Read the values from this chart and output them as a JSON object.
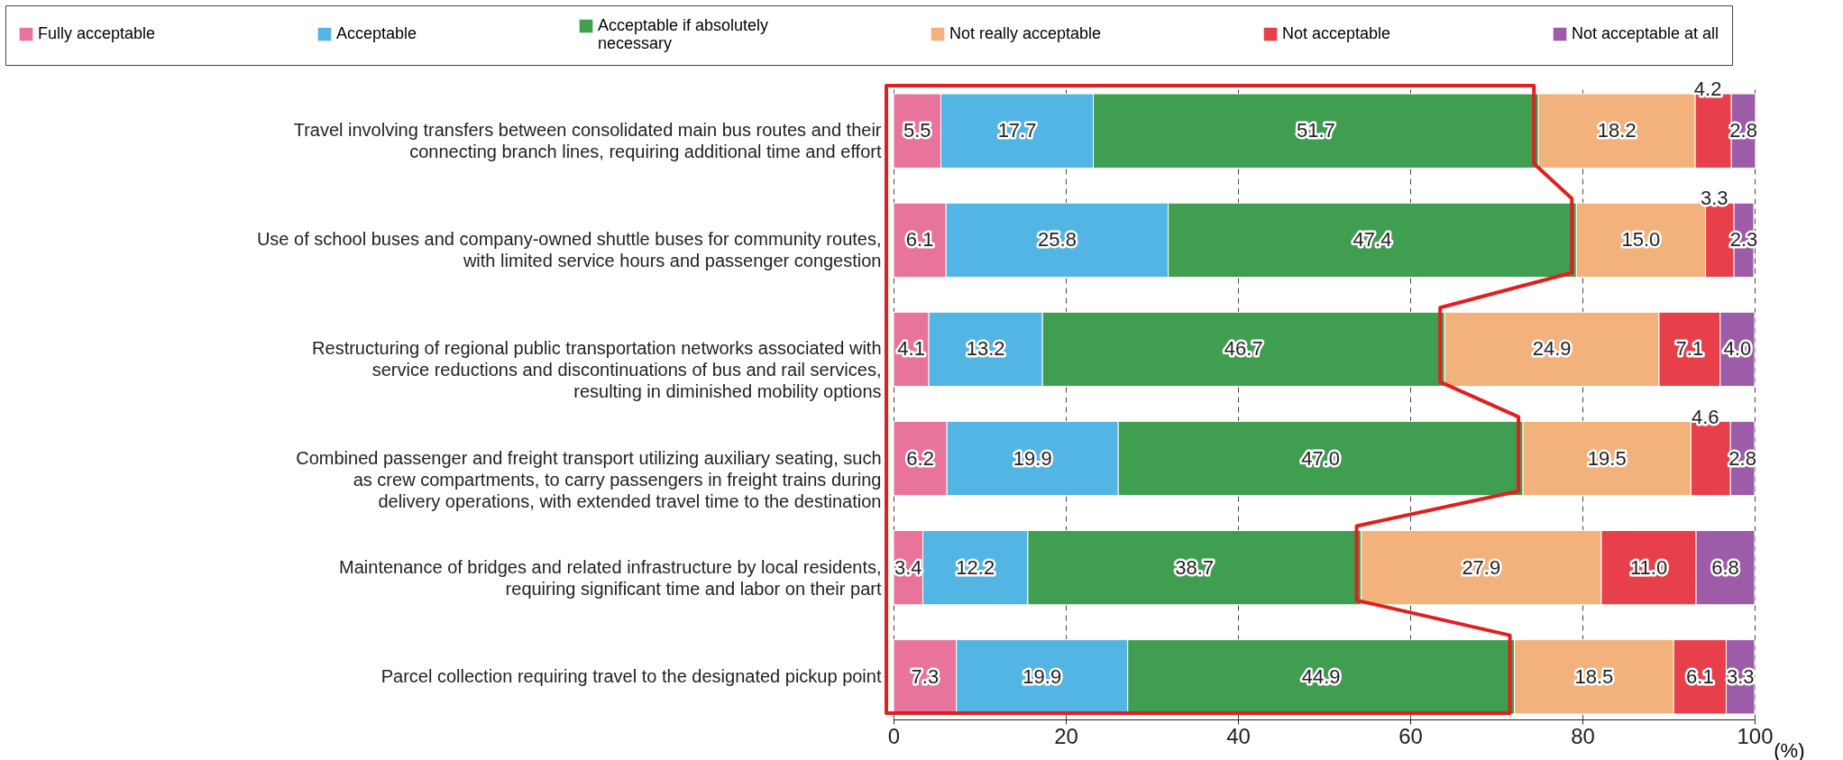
{
  "chart_data": {
    "type": "bar",
    "orientation": "horizontal",
    "stacked": true,
    "legend": "top",
    "grid": "x",
    "line_style": "dashed",
    "xlabel": "(%)",
    "categories": [
      "Travel involving transfers between consolidated main bus routes and their connecting branch lines, requiring additional time and effort",
      "Use of school buses and company-owned shuttle buses for community routes, with limited service hours and passenger congestion",
      "Restructuring of regional public transportation networks associated with service reductions and discontinuations of bus and rail services, resulting in diminished mobility options",
      "Combined passenger and freight transport utilizing auxiliary seating, such as crew compartments, to carry passengers in freight trains during delivery operations, with extended travel time to the destination",
      "Maintenance of bridges and related infrastructure by local residents, requiring significant time and labor on their part",
      "Parcel collection requiring travel to the designated pickup point"
    ],
    "series": [
      {
        "name": "Fully acceptable",
        "color": "#e8739b",
        "values": [
          5.5,
          6.1,
          4.1,
          6.2,
          3.4,
          7.3
        ],
        "value_labels": [
          "5.5",
          "6.1",
          "4.1",
          "6.2",
          "3.4",
          "7.3"
        ]
      },
      {
        "name": "Acceptable",
        "color": "#52b5e3",
        "values": [
          17.7,
          25.8,
          13.2,
          19.9,
          12.2,
          19.9
        ],
        "value_labels": [
          "17.7",
          "25.8",
          "13.2",
          "19.9",
          "12.2",
          "19.9"
        ]
      },
      {
        "name": "Acceptable if absolutely necessary",
        "color": "#3f9e50",
        "values": [
          51.7,
          47.4,
          46.7,
          47.0,
          38.7,
          44.9
        ],
        "value_labels": [
          "51.7",
          "47.4",
          "46.7",
          "47.0",
          "38.7",
          "44.9"
        ]
      },
      {
        "name": "Not really acceptable",
        "color": "#f3b27c",
        "values": [
          18.2,
          15.0,
          24.9,
          19.5,
          27.9,
          18.5
        ],
        "value_labels": [
          "18.2",
          "15.0",
          "24.9",
          "19.5",
          "27.9",
          "18.5"
        ]
      },
      {
        "name": "Not acceptable",
        "color": "#e8404a",
        "values": [
          4.2,
          3.3,
          7.1,
          4.6,
          11.0,
          6.1
        ],
        "value_labels": [
          "4.2",
          "3.3",
          "7.1",
          "4.6",
          "11.0",
          "6.1"
        ]
      },
      {
        "name": "Not acceptable at all",
        "color": "#9c5ca8",
        "values": [
          2.8,
          2.3,
          4.0,
          2.8,
          6.8,
          3.3
        ],
        "value_labels": [
          "2.8",
          "2.3",
          "4.0",
          "2.8",
          "6.8",
          "3.3"
        ]
      }
    ],
    "xlim": [
      0,
      100
    ],
    "xticks": [
      0,
      20,
      40,
      60,
      80,
      100
    ]
  }
}
